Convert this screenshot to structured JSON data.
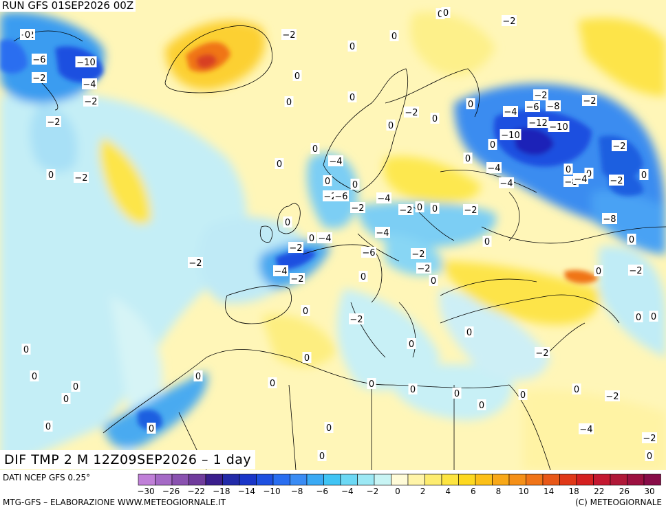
{
  "header": {
    "run_label": "RUN GFS 01SEP2026 00Z"
  },
  "map": {
    "title": "DIF TMP 2 M 12Z09SEP2026 – 1 day",
    "contour_labels": [
      "-2",
      "-6",
      "-2",
      "-10",
      "-4",
      "-2",
      "-2",
      "0",
      "0",
      "-2",
      "-2",
      "0",
      "0",
      "0",
      "0",
      "-2",
      "0",
      "0",
      "0",
      "-2",
      "-4",
      "-6",
      "-8",
      "-2",
      "0",
      "-10",
      "-12",
      "-10",
      "0",
      "0",
      "-4",
      "0",
      "-4",
      "-4",
      "0",
      "0",
      "-8",
      "-4",
      "0",
      "-2",
      "0",
      "-2",
      "-8",
      "0",
      "-2",
      "-2",
      "-6",
      "-2",
      "-2",
      "0",
      "0",
      "-4",
      "-2",
      "-4",
      "0",
      "-2",
      "-2",
      "0",
      "-4",
      "-6",
      "-2",
      "-2",
      "0",
      "-4",
      "-2",
      "-2",
      "0",
      "0",
      "0",
      "-2",
      "0",
      "0",
      "-2",
      "0",
      "0",
      "0",
      "0",
      "0",
      "0",
      "0",
      "0",
      "0",
      "0",
      "0",
      "0",
      "0",
      "0",
      "0",
      "-2",
      "-4",
      "-2",
      "0",
      "0",
      "0",
      "0",
      "0",
      "0",
      "0",
      "0",
      "0",
      "0"
    ],
    "colors": {
      "cold_deep": "#1a22b8",
      "cold": "#1e5fe0",
      "cool": "#3fb2f0",
      "light_cool": "#aee6f6",
      "near_zero": "#fffbcf",
      "warm_light": "#fff3a0",
      "warm": "#fde640",
      "hot": "#f58a1c",
      "very_hot": "#d8271c"
    }
  },
  "footer": {
    "source_label": "DATI NCEP GFS 0.25°",
    "credit_left": "MTG-GFS – ELABORAZIONE WWW.METEOGIORNALE.IT",
    "credit_right": "(C) METEOGIORNALE",
    "legend_colors": [
      "#c080d8",
      "#a56ac6",
      "#8a52b0",
      "#703c9c",
      "#3a1e8c",
      "#222aa8",
      "#1a36c8",
      "#1e50e0",
      "#2a6ef0",
      "#3a8cf4",
      "#3aaaf4",
      "#40c4f4",
      "#6cd8f4",
      "#9ce8f4",
      "#c8f4f4",
      "#fffbd8",
      "#fff4a8",
      "#fdec70",
      "#fde440",
      "#fdd820",
      "#fcc018",
      "#f8a818",
      "#f59018",
      "#f07418",
      "#e85818",
      "#e03818",
      "#d42020",
      "#c41830",
      "#b01838",
      "#9c1040",
      "#880c48"
    ],
    "legend_ticks": [
      "-30",
      "-26",
      "-22",
      "-18",
      "-14",
      "-10",
      "-8",
      "-6",
      "-4",
      "-2",
      "0",
      "2",
      "4",
      "6",
      "8",
      "10",
      "14",
      "18",
      "22",
      "26",
      "30"
    ]
  }
}
